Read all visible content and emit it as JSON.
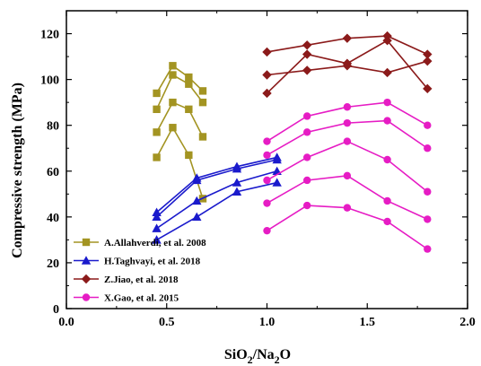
{
  "chart_data": {
    "type": "line",
    "xlabel": "SiO2/Na2O",
    "ylabel": "Compressive strength (MPa)",
    "xlim": [
      0.0,
      2.0
    ],
    "ylim": [
      0,
      130
    ],
    "xticks": [
      "0.0",
      "0.5",
      "1.0",
      "1.5",
      "2.0"
    ],
    "yticks": [
      "0",
      "20",
      "40",
      "60",
      "80",
      "100",
      "120"
    ],
    "legend_position": "bottom-left",
    "grid": false,
    "groups": [
      {
        "name": "A.Allahverdi, et al. 2008",
        "color": "#a39422",
        "marker": "square",
        "series": [
          {
            "x": [
              0.45,
              0.53,
              0.61,
              0.68
            ],
            "y": [
              94,
              106,
              101,
              95
            ]
          },
          {
            "x": [
              0.45,
              0.53,
              0.61,
              0.68
            ],
            "y": [
              87,
              102,
              98,
              90
            ]
          },
          {
            "x": [
              0.45,
              0.53,
              0.61,
              0.68
            ],
            "y": [
              77,
              90,
              87,
              75
            ]
          },
          {
            "x": [
              0.45,
              0.53,
              0.61,
              0.68
            ],
            "y": [
              66,
              79,
              67,
              48
            ]
          }
        ]
      },
      {
        "name": "H.Taghvayi, et al. 2018",
        "color": "#1a1acc",
        "marker": "triangle",
        "series": [
          {
            "x": [
              0.45,
              0.65,
              0.85,
              1.05
            ],
            "y": [
              42,
              57,
              62,
              66
            ]
          },
          {
            "x": [
              0.45,
              0.65,
              0.85,
              1.05
            ],
            "y": [
              40,
              56,
              61,
              65
            ]
          },
          {
            "x": [
              0.45,
              0.65,
              0.85,
              1.05
            ],
            "y": [
              35,
              47,
              55,
              60
            ]
          },
          {
            "x": [
              0.45,
              0.65,
              0.85,
              1.05
            ],
            "y": [
              30,
              40,
              51,
              55
            ]
          }
        ]
      },
      {
        "name": "Z.Jiao, et al. 2018",
        "color": "#8b1a1a",
        "marker": "diamond",
        "series": [
          {
            "x": [
              1.0,
              1.2,
              1.4,
              1.6,
              1.8
            ],
            "y": [
              112,
              115,
              118,
              119,
              111
            ]
          },
          {
            "x": [
              1.0,
              1.2,
              1.4,
              1.6,
              1.8
            ],
            "y": [
              102,
              104,
              106,
              103,
              108
            ]
          },
          {
            "x": [
              1.0,
              1.2,
              1.4,
              1.6,
              1.8
            ],
            "y": [
              94,
              111,
              107,
              117,
              96
            ]
          }
        ]
      },
      {
        "name": "X.Gao, et al. 2015",
        "color": "#e61cc4",
        "marker": "circle",
        "series": [
          {
            "x": [
              1.0,
              1.2,
              1.4,
              1.6,
              1.8
            ],
            "y": [
              73,
              84,
              88,
              90,
              80
            ]
          },
          {
            "x": [
              1.0,
              1.2,
              1.4,
              1.6,
              1.8
            ],
            "y": [
              67,
              77,
              81,
              82,
              70
            ]
          },
          {
            "x": [
              1.0,
              1.2,
              1.4,
              1.6,
              1.8
            ],
            "y": [
              56,
              66,
              73,
              65,
              51
            ]
          },
          {
            "x": [
              1.0,
              1.2,
              1.4,
              1.6,
              1.8
            ],
            "y": [
              46,
              56,
              58,
              47,
              39
            ]
          },
          {
            "x": [
              1.0,
              1.2,
              1.4,
              1.6,
              1.8
            ],
            "y": [
              34,
              45,
              44,
              38,
              26
            ]
          }
        ]
      }
    ]
  },
  "axes": {
    "x_title_main": "SiO",
    "x_title_sub1": "2",
    "x_title_mid": "/Na",
    "x_title_sub2": "2",
    "x_title_end": "O",
    "y_title": "Compressive strength (MPa)"
  },
  "legend": {
    "items": [
      "A.Allahverdi, et al. 2008",
      "H.Taghvayi, et al. 2018",
      "Z.Jiao, et al. 2018",
      "X.Gao, et al. 2015"
    ]
  }
}
